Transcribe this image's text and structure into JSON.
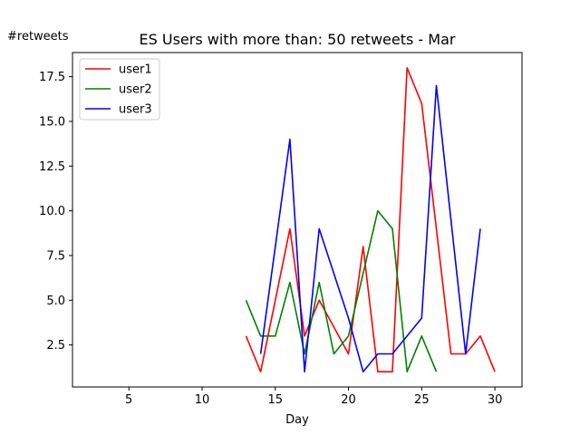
{
  "chart_data": {
    "type": "line",
    "title": "ES Users with more than: 50 retweets - Mar",
    "xlabel": "Day",
    "ylabel": "#retweets",
    "xlim": [
      1.15,
      31.85
    ],
    "ylim": [
      0.15,
      18.85
    ],
    "xticks": [
      5,
      10,
      15,
      20,
      25,
      30
    ],
    "yticks": [
      2.5,
      5.0,
      7.5,
      10.0,
      12.5,
      15.0,
      17.5
    ],
    "grid": false,
    "legend_position": "top-left",
    "series": [
      {
        "name": "user1",
        "color": "#ff0000",
        "x": [
          13,
          14,
          15,
          16,
          17,
          18,
          19,
          20,
          21,
          22,
          23,
          24,
          25,
          26,
          27,
          28,
          29,
          30
        ],
        "y": [
          3,
          1,
          5,
          9,
          3,
          5,
          3.5,
          2,
          8,
          1,
          1,
          18,
          16,
          9,
          2,
          2,
          3,
          1
        ]
      },
      {
        "name": "user2",
        "color": "#008000",
        "x": [
          13,
          14,
          15,
          16,
          17,
          18,
          19,
          20,
          21,
          22,
          23,
          24,
          25,
          26
        ],
        "y": [
          5,
          3,
          3,
          6,
          2,
          6,
          2,
          3,
          6.5,
          10,
          9,
          1,
          3,
          1
        ]
      },
      {
        "name": "user3",
        "color": "#0000ff",
        "x": [
          14,
          15,
          16,
          17,
          18,
          19,
          20,
          21,
          22,
          23,
          24,
          25,
          26,
          27,
          28,
          29
        ],
        "y": [
          2,
          8,
          14,
          1,
          9,
          6.5,
          4,
          1,
          2,
          2,
          3,
          4,
          17,
          9.5,
          2,
          9
        ]
      }
    ]
  }
}
